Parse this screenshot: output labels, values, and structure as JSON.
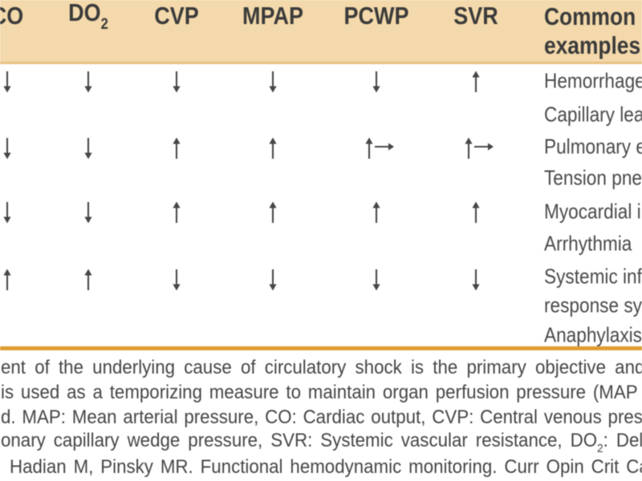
{
  "colors": {
    "header_background": "#f3d9ab",
    "header_divider": "#e7c183",
    "orange_rule": "#df9d33",
    "header_text": "#3b3b3b",
    "body_text": "#4a4a4a",
    "arrow": "#474747",
    "footnote_text": "#464646",
    "page_background": "#ffffff"
  },
  "header": {
    "columns": [
      {
        "label": "CO",
        "subscript": ""
      },
      {
        "label": "DO",
        "subscript": "2"
      },
      {
        "label": "CVP",
        "subscript": ""
      },
      {
        "label": "MPAP",
        "subscript": ""
      },
      {
        "label": "PCWP",
        "subscript": ""
      },
      {
        "label": "SVR",
        "subscript": ""
      }
    ],
    "examples_title_lines": [
      "Common",
      "examples"
    ]
  },
  "rows": [
    {
      "arrows": [
        "down",
        "down",
        "down",
        "down",
        "down",
        "up"
      ],
      "example": "Hemorrhage"
    },
    {
      "arrows": [],
      "example": "Capillary leak"
    },
    {
      "arrows": [
        "down",
        "down",
        "up",
        "up",
        "up-right",
        "up-right"
      ],
      "example": "Pulmonary embolism"
    },
    {
      "arrows": [],
      "example": "Tension pneumothorax"
    },
    {
      "arrows": [
        "down",
        "down",
        "up",
        "up",
        "up",
        "up"
      ],
      "example": "Myocardial infarction"
    },
    {
      "arrows": [],
      "example": "Arrhythmia"
    },
    {
      "arrows": [
        "up",
        "up",
        "down",
        "down",
        "down",
        "down"
      ],
      "example": "Systemic inflammatory"
    },
    {
      "arrows": [],
      "example": "response syndrome"
    },
    {
      "arrows": [],
      "example": "Anaphylaxis"
    }
  ],
  "footnote": {
    "lines": [
      [
        {
          "text": "ent of the underlying cause of circulatory shock is the primary objective and"
        }
      ],
      [
        {
          "text": "is used as a temporizing measure to maintain organ perfusion pressure (MAP"
        }
      ],
      [
        {
          "text": "d. MAP: Mean arterial pressure, CO: Cardiac output, CVP: Central venous pressure,"
        }
      ],
      [
        {
          "text": "onary capillary wedge pressure, SVR: Systemic vascular resistance, DO"
        },
        {
          "sub": "2"
        },
        {
          "text": ": Delivery"
        }
      ],
      [
        {
          "text": "Hadian M, Pinsky MR. Functional hemodynamic monitoring. Curr Opin Crit Care"
        }
      ]
    ]
  }
}
